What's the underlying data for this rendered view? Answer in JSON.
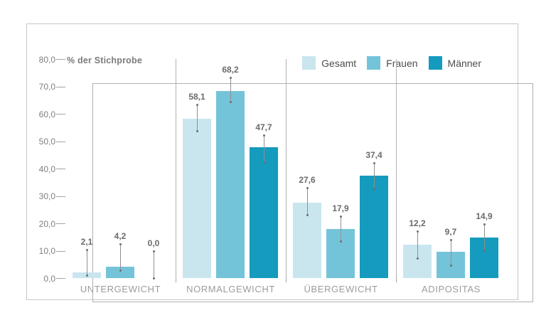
{
  "chart_data": {
    "type": "bar",
    "title": "% der Stichprobe",
    "categories": [
      "UNTERGEWICHT",
      "NORMALGEWICHT",
      "ÜBERGEWICHT",
      "ADIPOSITAS"
    ],
    "series": [
      {
        "name": "Gesamt",
        "color": "#c9e6ef",
        "values": [
          2.1,
          58.1,
          27.6,
          12.2
        ],
        "labels": [
          "2,1",
          "58,1",
          "27,6",
          "12,2"
        ],
        "ci_low": [
          1.0,
          53.8,
          23.1,
          7.3
        ],
        "ci_high": [
          10.4,
          63.4,
          33.0,
          17.1
        ]
      },
      {
        "name": "Frauen",
        "color": "#74c4d9",
        "values": [
          4.2,
          68.2,
          17.9,
          9.7
        ],
        "labels": [
          "4,2",
          "68,2",
          "17,9",
          "9,7"
        ],
        "ci_low": [
          2.9,
          64.4,
          13.5,
          4.7
        ],
        "ci_high": [
          12.5,
          73.2,
          22.6,
          14.0
        ]
      },
      {
        "name": "Männer",
        "color": "#149bbd",
        "values": [
          0.0,
          47.7,
          37.4,
          14.9
        ],
        "labels": [
          "0,0",
          "47,7",
          "37,4",
          "14,9"
        ],
        "ci_low": [
          0.0,
          42.3,
          32.7,
          10.1
        ],
        "ci_high": [
          9.9,
          52.2,
          42.1,
          19.7
        ]
      }
    ],
    "ylim": [
      0,
      80
    ],
    "ytick_step": 10,
    "yticks": [
      "80,0",
      "70,0",
      "60,0",
      "50,0",
      "40,0",
      "30,0",
      "20,0",
      "10,0",
      "0,0"
    ],
    "ylabel": "% der Stichprobe",
    "xlabel": "",
    "grid": false,
    "legend_position": "top-right",
    "error_bars": true
  }
}
